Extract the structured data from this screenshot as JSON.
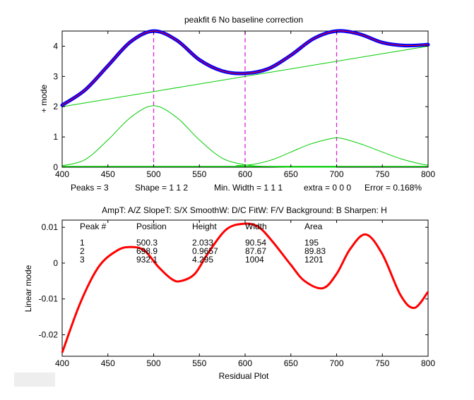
{
  "chart_data": [
    {
      "type": "line",
      "title": "peakfit 6    No baseline correction",
      "xlabel": "",
      "ylabel": "+ mode",
      "xlim": [
        400,
        800
      ],
      "ylim": [
        0,
        4.5
      ],
      "xticks": [
        "400",
        "450",
        "500",
        "550",
        "600",
        "650",
        "700",
        "750",
        "800"
      ],
      "yticks": [
        "0",
        "1",
        "2",
        "3",
        "4"
      ],
      "peak_markers_x": [
        500,
        600,
        700
      ],
      "series": [
        {
          "color": "#0000ff",
          "style": "points",
          "x": [
            400,
            425,
            450,
            475,
            500,
            525,
            550,
            575,
            600,
            625,
            650,
            675,
            700,
            725,
            750,
            775,
            800
          ],
          "y": [
            2.05,
            2.55,
            3.35,
            4.15,
            4.5,
            4.2,
            3.55,
            3.18,
            3.1,
            3.25,
            3.7,
            4.25,
            4.5,
            4.4,
            4.12,
            4.02,
            4.05
          ]
        },
        {
          "color": "#ff0000",
          "x": [
            400,
            425,
            450,
            475,
            500,
            525,
            550,
            575,
            600,
            625,
            650,
            675,
            700,
            725,
            750,
            775,
            800
          ],
          "y": [
            2.05,
            2.55,
            3.35,
            4.15,
            4.5,
            4.2,
            3.55,
            3.18,
            3.1,
            3.25,
            3.7,
            4.25,
            4.5,
            4.4,
            4.12,
            4.02,
            4.05
          ]
        },
        {
          "color": "#00cc00",
          "x": [
            400,
            800
          ],
          "y": [
            2.0,
            4.0
          ]
        },
        {
          "color": "#00cc00",
          "x": [
            400,
            425,
            450,
            475,
            500,
            525,
            550,
            575,
            600,
            625,
            650,
            675,
            700
          ],
          "y": [
            0.05,
            0.25,
            0.9,
            1.65,
            2.03,
            1.65,
            0.9,
            0.3,
            0.08,
            0.02,
            0.0,
            0.0,
            0.0
          ]
        },
        {
          "color": "#00cc00",
          "x": [
            590,
            610,
            630,
            650,
            670,
            690,
            700,
            710,
            730,
            750,
            770,
            790,
            800
          ],
          "y": [
            0.05,
            0.1,
            0.25,
            0.5,
            0.75,
            0.92,
            0.97,
            0.92,
            0.73,
            0.5,
            0.28,
            0.12,
            0.07
          ]
        }
      ]
    },
    {
      "type": "line",
      "title": "AmpT: A/Z    SlopeT: S/X    SmoothW: D/C    FitW: F/V    Background: B    Sharpen: H",
      "xlabel": "Residual Plot",
      "ylabel": "Linear mode",
      "xlim": [
        400,
        800
      ],
      "ylim": [
        -0.026,
        0.012
      ],
      "xticks": [
        "400",
        "450",
        "500",
        "550",
        "600",
        "650",
        "700",
        "750",
        "800"
      ],
      "yticks": [
        "-0.02",
        "-0.01",
        "0",
        "0.01"
      ],
      "series": [
        {
          "color": "#ff0000",
          "x": [
            400,
            420,
            440,
            460,
            475,
            490,
            505,
            520,
            530,
            545,
            560,
            580,
            600,
            615,
            630,
            650,
            665,
            685,
            700,
            715,
            732,
            750,
            770,
            785,
            800
          ],
          "y": [
            -0.025,
            -0.011,
            -0.001,
            0.0035,
            0.0045,
            0.0035,
            -0.001,
            -0.0045,
            -0.005,
            -0.003,
            0.003,
            0.0095,
            0.011,
            0.01,
            0.006,
            -0.0005,
            -0.005,
            -0.007,
            -0.003,
            0.004,
            0.008,
            0.0025,
            -0.009,
            -0.0125,
            -0.008
          ]
        }
      ]
    }
  ],
  "fit_summary": {
    "peaks": "Peaks = 3",
    "shape": "Shape = 1  1  2",
    "min_width": "Min. Width = 1  1  1",
    "extra": "extra = 0  0  0",
    "error": "Error = 0.168%"
  },
  "results_table": {
    "headers": [
      "Peak #",
      "Position",
      "Height",
      "Width",
      "Area"
    ],
    "rows": [
      [
        "1",
        "500.3",
        "2.033",
        "90.54",
        "195"
      ],
      [
        "2",
        "698.9",
        "0.9657",
        "87.67",
        "89.83"
      ],
      [
        "3",
        "932.1",
        "4.295",
        "1004",
        "1201"
      ]
    ]
  }
}
